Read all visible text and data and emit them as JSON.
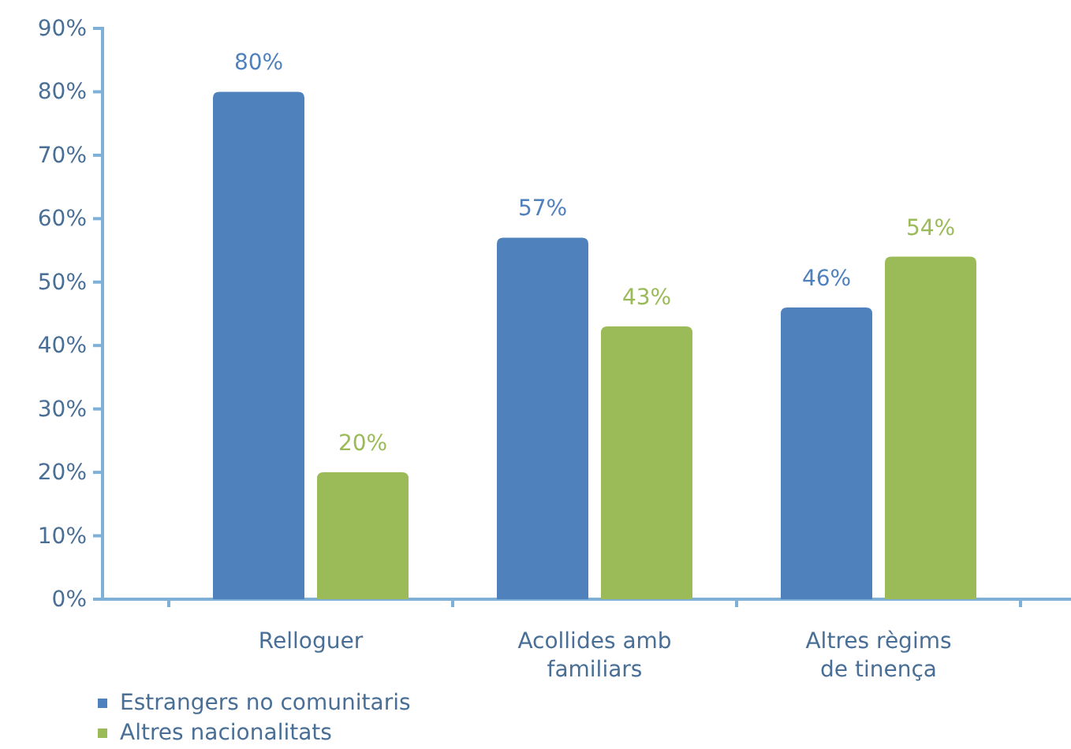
{
  "chart_data": {
    "type": "bar",
    "categories": [
      "Relloguer",
      "Acollides amb familiars",
      "Altres règims de tinença"
    ],
    "series": [
      {
        "name": "Estrangers no comunitaris",
        "color": "#4f81bd",
        "values": [
          80,
          57,
          46
        ],
        "value_labels": [
          "80%",
          "57%",
          "46%"
        ]
      },
      {
        "name": "Altres nacionalitats",
        "color": "#9bbb59",
        "values": [
          20,
          43,
          54
        ],
        "value_labels": [
          "20%",
          "43%",
          "54%"
        ]
      }
    ],
    "ylim": [
      0,
      90
    ],
    "yticks": [
      {
        "value": 0,
        "label": "0%"
      },
      {
        "value": 10,
        "label": "10%"
      },
      {
        "value": 20,
        "label": "20%"
      },
      {
        "value": 30,
        "label": "30%"
      },
      {
        "value": 40,
        "label": "40%"
      },
      {
        "value": 50,
        "label": "50%"
      },
      {
        "value": 60,
        "label": "60%"
      },
      {
        "value": 70,
        "label": "70%"
      },
      {
        "value": 80,
        "label": "80%"
      },
      {
        "value": 90,
        "label": "90%"
      }
    ],
    "grid": false,
    "legend": "bottom left"
  }
}
